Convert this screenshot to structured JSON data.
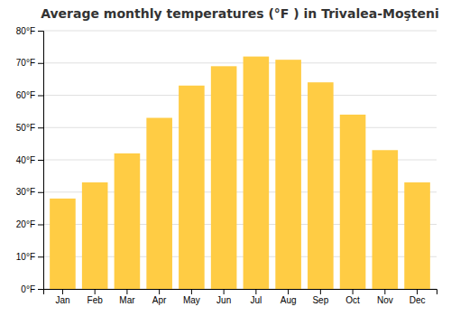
{
  "chart_data": {
    "type": "bar",
    "title": "Average monthly temperatures (°F ) in Trivalea-Moşteni",
    "categories": [
      "Jan",
      "Feb",
      "Mar",
      "Apr",
      "May",
      "Jun",
      "Jul",
      "Aug",
      "Sep",
      "Oct",
      "Nov",
      "Dec"
    ],
    "values": [
      28,
      33,
      42,
      53,
      63,
      69,
      72,
      71,
      64,
      54,
      43,
      33
    ],
    "color": "#FFCC44",
    "ylim": [
      0,
      80
    ],
    "yticks": [
      {
        "value": 0,
        "label": "0°F"
      },
      {
        "value": 10,
        "label": "10°F"
      },
      {
        "value": 20,
        "label": "20°F"
      },
      {
        "value": 30,
        "label": "30°F"
      },
      {
        "value": 40,
        "label": "40°F"
      },
      {
        "value": 50,
        "label": "50°F"
      },
      {
        "value": 60,
        "label": "60°F"
      },
      {
        "value": 70,
        "label": "70°F"
      },
      {
        "value": 80,
        "label": "80°F"
      }
    ],
    "grid": true
  }
}
